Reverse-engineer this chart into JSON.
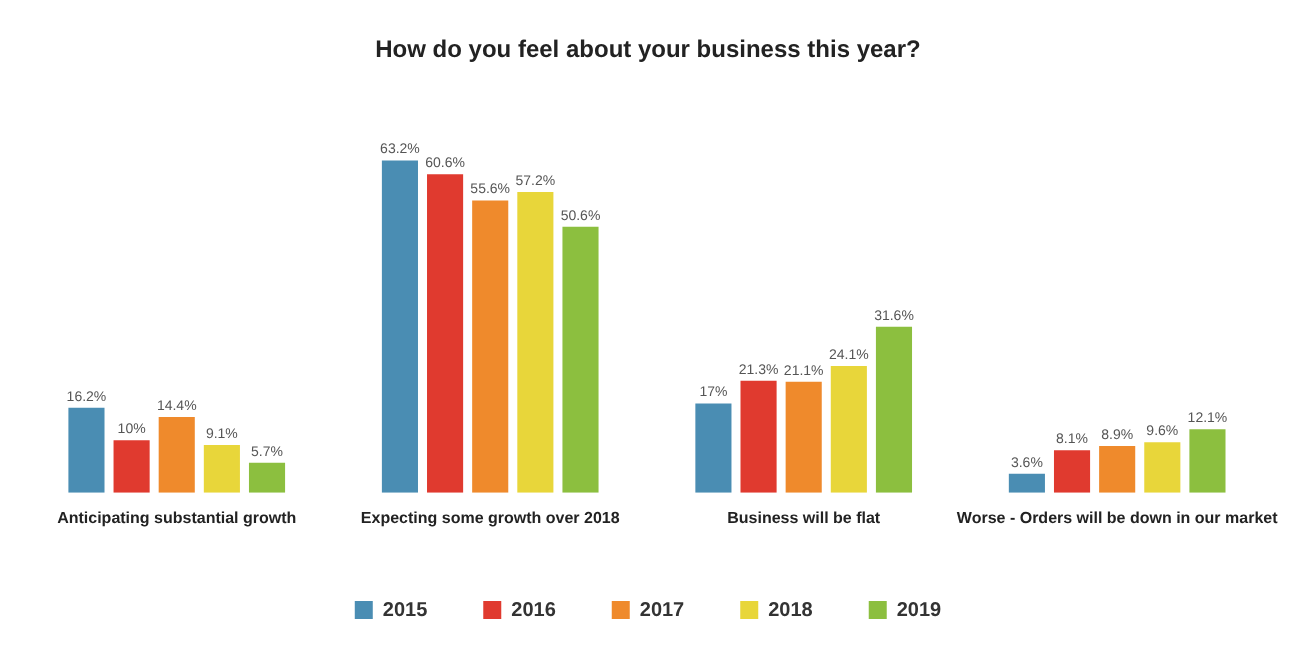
{
  "chart_data": {
    "type": "bar",
    "title": "How do you feel about your business this year?",
    "categories": [
      "Anticipating substantial growth",
      "Expecting some growth over 2018",
      "Business will be flat",
      "Worse - Orders will be down in our market"
    ],
    "series": [
      {
        "name": "2015",
        "color": "#4a8db3",
        "values": [
          16.2,
          63.2,
          17,
          3.6
        ],
        "value_labels": [
          "16.2%",
          "63.2%",
          "17%",
          "3.6%"
        ]
      },
      {
        "name": "2016",
        "color": "#e03a2f",
        "values": [
          10,
          60.6,
          21.3,
          8.1
        ],
        "value_labels": [
          "10%",
          "60.6%",
          "21.3%",
          "8.1%"
        ]
      },
      {
        "name": "2017",
        "color": "#ef8a2c",
        "values": [
          14.4,
          55.6,
          21.1,
          8.9
        ],
        "value_labels": [
          "14.4%",
          "55.6%",
          "21.1%",
          "8.9%"
        ]
      },
      {
        "name": "2018",
        "color": "#e8d63a",
        "values": [
          9.1,
          57.2,
          24.1,
          9.6
        ],
        "value_labels": [
          "9.1%",
          "57.2%",
          "24.1%",
          "9.6%"
        ]
      },
      {
        "name": "2019",
        "color": "#8cbf3f",
        "values": [
          5.7,
          50.6,
          31.6,
          12.1
        ],
        "value_labels": [
          "5.7%",
          "50.6%",
          "31.6%",
          "12.1%"
        ]
      }
    ],
    "legend": "bottom",
    "grid": false,
    "tick_labels": "x"
  }
}
